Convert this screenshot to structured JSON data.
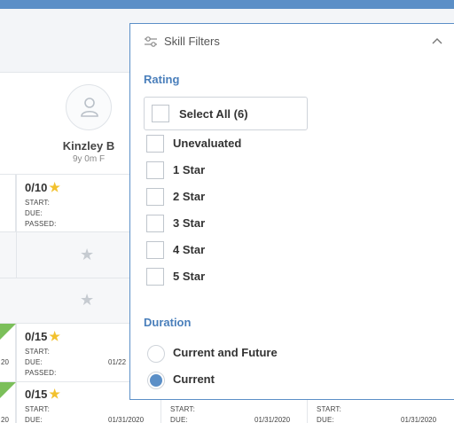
{
  "student": {
    "name": "Kinzley B",
    "meta": "9y 0m F"
  },
  "grid": {
    "rows": [
      {
        "score": "0/10",
        "start": "START:",
        "due": "DUE:",
        "passed": "PASSED:"
      },
      {
        "score": "0/15",
        "start": "START:",
        "due": "DUE:",
        "passed": "PASSED:",
        "due_date": "01/22",
        "left_frag": "20"
      },
      {
        "score": "0/15",
        "start": "START:",
        "due": "DUE:",
        "due_date": "01/31/2020",
        "left_frag": "20"
      }
    ],
    "extra_cols": [
      {
        "start": "START:",
        "due": "DUE:",
        "due_date": "01/31/2020"
      },
      {
        "start": "START:",
        "due": "DUE:",
        "due_date": "01/31/2020"
      }
    ]
  },
  "filters": {
    "title": "Skill Filters",
    "rating": {
      "label": "Rating",
      "select_all": "Select All (6)",
      "options": [
        "Unevaluated",
        "1 Star",
        "2 Star",
        "3 Star",
        "4 Star",
        "5 Star"
      ]
    },
    "duration": {
      "label": "Duration",
      "options": [
        {
          "label": "Current and Future",
          "checked": false
        },
        {
          "label": "Current",
          "checked": true
        }
      ]
    }
  },
  "colors": {
    "accent": "#5b8fc7",
    "star": "#f2c12e",
    "green": "#7bbf5a"
  },
  "icons": {
    "filter": "sliders-icon",
    "collapse": "chevron-up-icon",
    "avatar": "user-icon"
  }
}
